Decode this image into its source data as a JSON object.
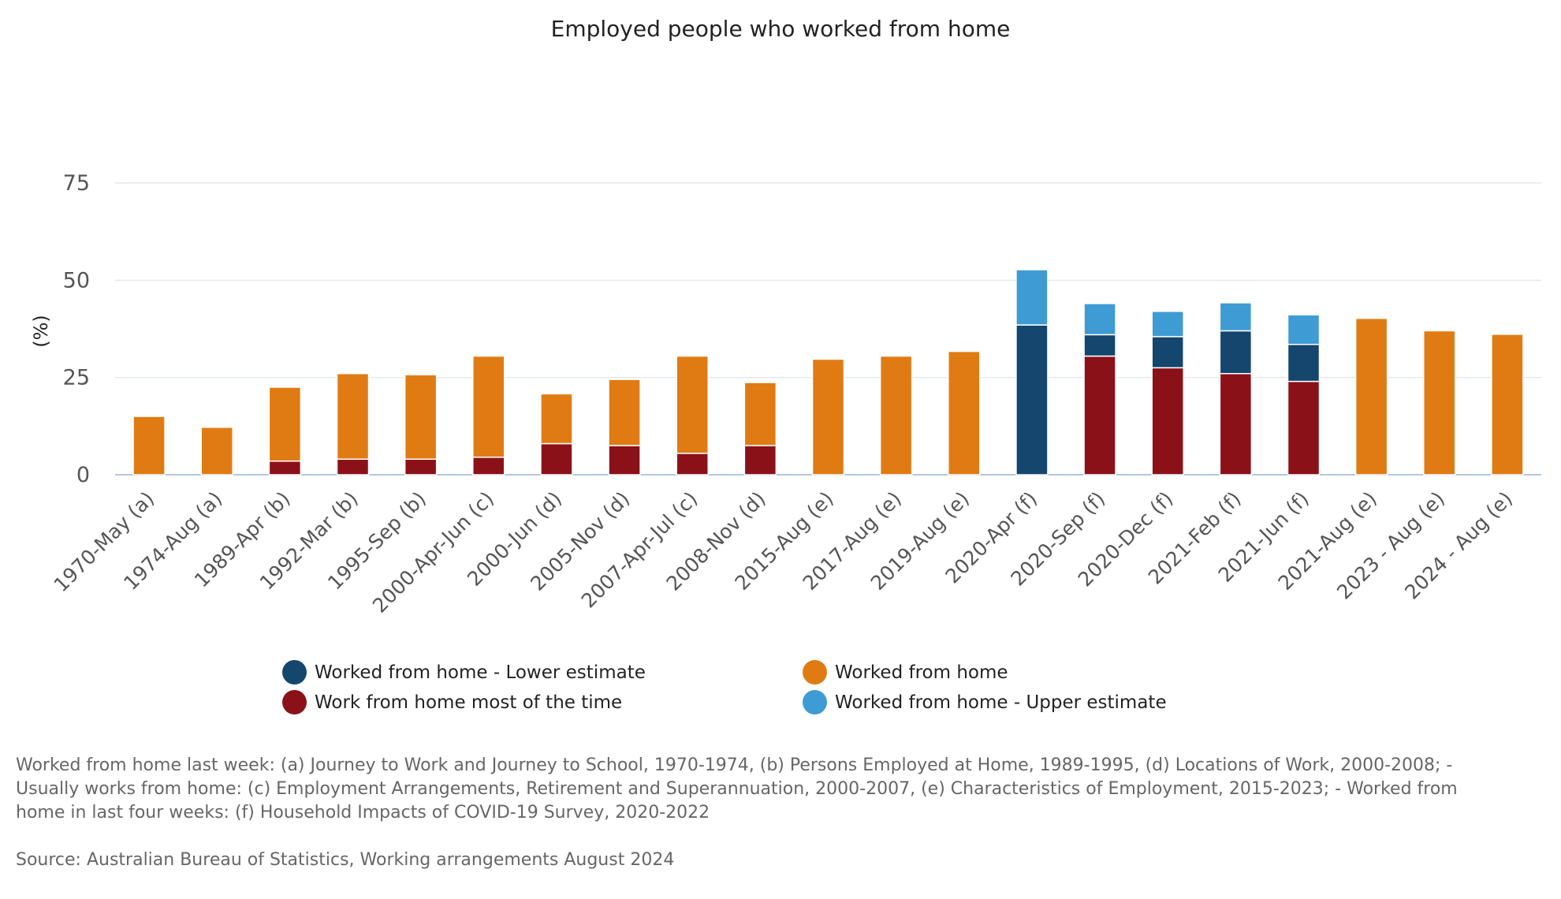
{
  "chart_data": {
    "type": "bar",
    "stacked": true,
    "title": "Employed people who worked from home",
    "ylabel": "(%)",
    "xlabel": "",
    "ylim": [
      0,
      75
    ],
    "yticks": [
      0,
      25,
      50,
      75
    ],
    "grid": true,
    "legend_position": "bottom",
    "categories": [
      "1970-May (a)",
      "1974-Aug (a)",
      "1989-Apr (b)",
      "1992-Mar (b)",
      "1995-Sep (b)",
      "2000-Apr-Jun (c)",
      "2000-Jun (d)",
      "2005-Nov (d)",
      "2007-Apr-Jul (c)",
      "2008-Nov (d)",
      "2015-Aug (e)",
      "2017-Aug (e)",
      "2019-Aug (e)",
      "2020-Apr (f)",
      "2020-Sep (f)",
      "2020-Dec (f)",
      "2021-Feb (f)",
      "2021-Jun (f)",
      "2021-Aug (e)",
      "2023 - Aug (e)",
      "2024 - Aug (e)"
    ],
    "series": [
      {
        "name": "Work from home most of the time",
        "color": "#8b1119",
        "values": [
          0,
          0,
          3.5,
          4.0,
          4.0,
          4.5,
          8.0,
          7.5,
          5.5,
          7.5,
          0,
          0,
          0,
          0,
          30.5,
          27.5,
          26.0,
          24.0,
          0,
          0,
          0
        ]
      },
      {
        "name": "Worked from home - Lower estimate",
        "color": "#14466e",
        "values": [
          0,
          0,
          0,
          0,
          0,
          0,
          0,
          0,
          0,
          0,
          0,
          0,
          0,
          38.5,
          5.5,
          8.0,
          11.0,
          9.5,
          0,
          0,
          0
        ]
      },
      {
        "name": "Worked from home",
        "color": "#e07b13",
        "values": [
          15.0,
          12.2,
          19.0,
          22.0,
          21.7,
          26.0,
          12.8,
          17.0,
          25.0,
          16.2,
          29.7,
          30.5,
          31.7,
          0,
          0,
          0,
          0,
          0,
          40.2,
          37.0,
          36.1
        ]
      },
      {
        "name": "Worked from home - Upper estimate",
        "color": "#3e9bd4",
        "values": [
          0,
          0,
          0,
          0,
          0,
          0,
          0,
          0,
          0,
          0,
          0,
          0,
          0,
          14.2,
          8.0,
          6.5,
          7.2,
          7.6,
          0,
          0,
          0
        ]
      }
    ]
  },
  "legend": [
    {
      "label": "Worked from home - Lower estimate",
      "color": "#14466e"
    },
    {
      "label": "Worked from home",
      "color": "#e07b13"
    },
    {
      "label": "Work from home most of the time",
      "color": "#8b1119"
    },
    {
      "label": "Worked from home - Upper estimate",
      "color": "#3e9bd4"
    }
  ],
  "notes": "Worked from home last week: (a) Journey to Work and Journey to School, 1970-1974, (b) Persons Employed at Home, 1989-1995, (d) Locations of Work, 2000-2008; - Usually works from home: (c) Employment Arrangements, Retirement and Superannuation, 2000-2007, (e) Characteristics of Employment, 2015-2023; - Worked from home in last four weeks: (f) Household Impacts of COVID-19 Survey, 2020-2022",
  "source": "Source: Australian Bureau of Statistics, Working arrangements August 2024"
}
